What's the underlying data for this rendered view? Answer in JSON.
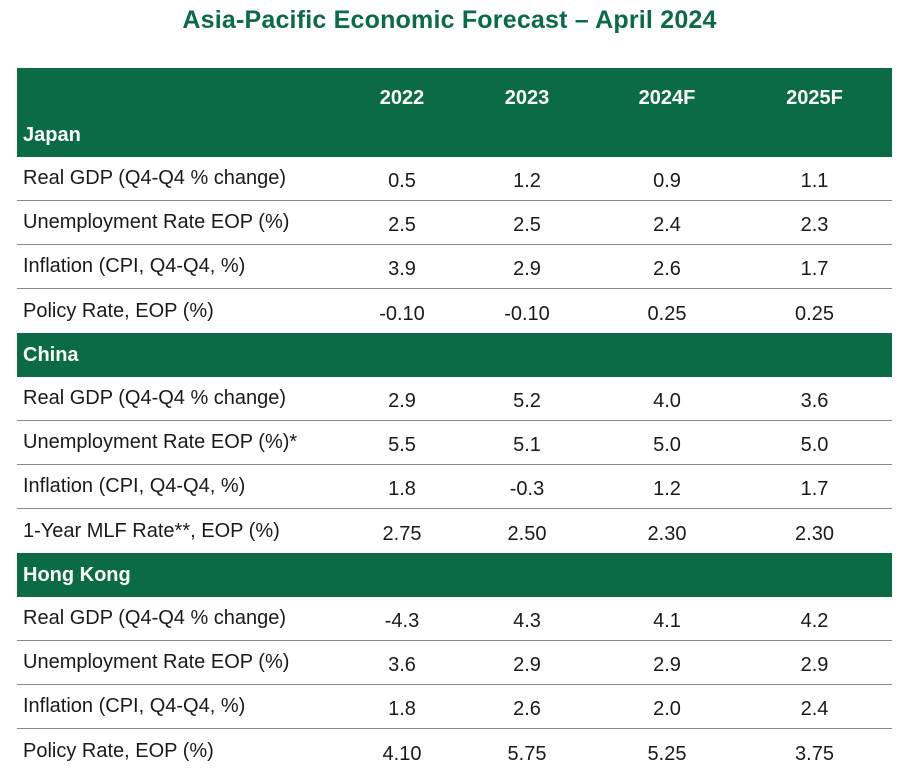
{
  "title": "Asia-Pacific Economic Forecast – April 2024",
  "columns": [
    "2022",
    "2023",
    "2024F",
    "2025F"
  ],
  "sections": [
    {
      "name": "Japan",
      "rows": [
        {
          "label": "Real GDP (Q4-Q4 % change)",
          "values": [
            "0.5",
            "1.2",
            "0.9",
            "1.1"
          ]
        },
        {
          "label": "Unemployment Rate EOP (%)",
          "values": [
            "2.5",
            "2.5",
            "2.4",
            "2.3"
          ]
        },
        {
          "label": "Inflation (CPI, Q4-Q4, %)",
          "values": [
            "3.9",
            "2.9",
            "2.6",
            "1.7"
          ]
        },
        {
          "label": "Policy Rate, EOP (%)",
          "values": [
            "-0.10",
            "-0.10",
            "0.25",
            "0.25"
          ]
        }
      ]
    },
    {
      "name": "China",
      "rows": [
        {
          "label": "Real GDP (Q4-Q4 % change)",
          "values": [
            "2.9",
            "5.2",
            "4.0",
            "3.6"
          ]
        },
        {
          "label": "Unemployment Rate EOP (%)*",
          "values": [
            "5.5",
            "5.1",
            "5.0",
            "5.0"
          ]
        },
        {
          "label": "Inflation (CPI, Q4-Q4, %)",
          "values": [
            "1.8",
            "-0.3",
            "1.2",
            "1.7"
          ]
        },
        {
          "label": "1-Year MLF Rate**, EOP (%)",
          "values": [
            "2.75",
            "2.50",
            "2.30",
            "2.30"
          ]
        }
      ]
    },
    {
      "name": "Hong Kong",
      "rows": [
        {
          "label": "Real GDP (Q4-Q4 % change)",
          "values": [
            "-4.3",
            "4.3",
            "4.1",
            "4.2"
          ]
        },
        {
          "label": "Unemployment Rate EOP (%)",
          "values": [
            "3.6",
            "2.9",
            "2.9",
            "2.9"
          ]
        },
        {
          "label": "Inflation (CPI, Q4-Q4, %)",
          "values": [
            "1.8",
            "2.6",
            "2.0",
            "2.4"
          ]
        },
        {
          "label": "Policy Rate, EOP (%)",
          "values": [
            "4.10",
            "5.75",
            "5.25",
            "3.75"
          ]
        }
      ]
    }
  ],
  "colors": {
    "header_green": "#0b6b45",
    "title_green": "#0b6b45"
  }
}
